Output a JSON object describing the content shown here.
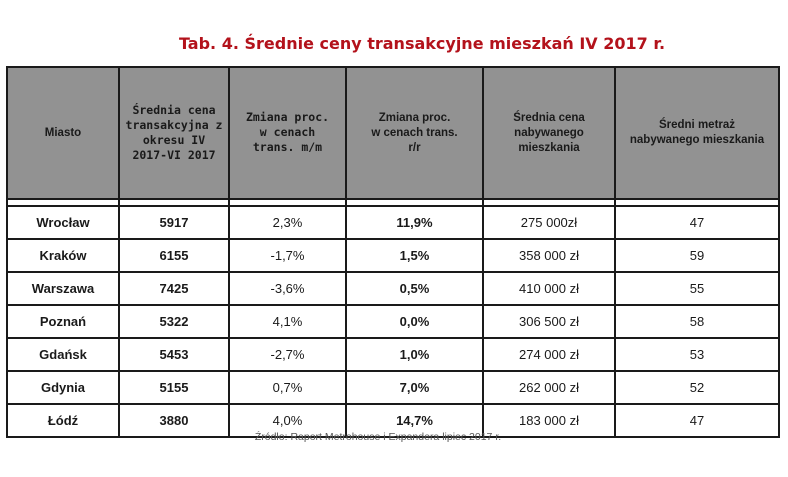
{
  "title": "Tab. 4. Średnie ceny transakcyjne mieszkań IV 2017 r.",
  "columns": [
    "Miasto",
    "Średnia cena transakcyjna z okresu IV 2017-VI 2017",
    "Zmiana proc. w cenach trans. m/m",
    "Zmiana proc. w cenach trans. r/r",
    "Średnia cena nabywanego mieszkania",
    "Średni metraż nabywanego mieszkania"
  ],
  "header_lines": [
    [
      "Miasto"
    ],
    [
      "Średnia cena",
      "transakcyjna z",
      "okresu IV",
      "2017-VI 2017"
    ],
    [
      "Zmiana proc.",
      "w cenach",
      "trans. m/m"
    ],
    [
      "Zmiana proc.",
      "w cenach trans.",
      "r/r"
    ],
    [
      "Średnia cena",
      "nabywanego",
      "mieszkania"
    ],
    [
      "Średni metraż",
      "nabywanego mieszkania"
    ]
  ],
  "rows": [
    {
      "city": "Wrocław",
      "price": "5917",
      "mm": "2,3%",
      "yy": "11,9%",
      "avg_price": "275 000zł",
      "area": "47"
    },
    {
      "city": "Kraków",
      "price": "6155",
      "mm": "-1,7%",
      "yy": "1,5%",
      "avg_price": "358 000 zł",
      "area": "59"
    },
    {
      "city": "Warszawa",
      "price": "7425",
      "mm": "-3,6%",
      "yy": "0,5%",
      "avg_price": "410 000 zł",
      "area": "55"
    },
    {
      "city": "Poznań",
      "price": "5322",
      "mm": "4,1%",
      "yy": "0,0%",
      "avg_price": "306 500 zł",
      "area": "58"
    },
    {
      "city": "Gdańsk",
      "price": "5453",
      "mm": "-2,7%",
      "yy": "1,0%",
      "avg_price": "274 000 zł",
      "area": "53"
    },
    {
      "city": "Gdynia",
      "price": "5155",
      "mm": "0,7%",
      "yy": "7,0%",
      "avg_price": "262 000 zł",
      "area": "52"
    },
    {
      "city": "Łódź",
      "price": "3880",
      "mm": "4,0%",
      "yy": "14,7%",
      "avg_price": "183 000  zł",
      "area": "47"
    }
  ],
  "source": "Źródło: Raport Metrohouse i Expandera lipiec 2017 r.",
  "colors": {
    "title": "#b3121b",
    "header_bg": "#929292",
    "border": "#1a1a1a",
    "source_text": "#555555"
  }
}
